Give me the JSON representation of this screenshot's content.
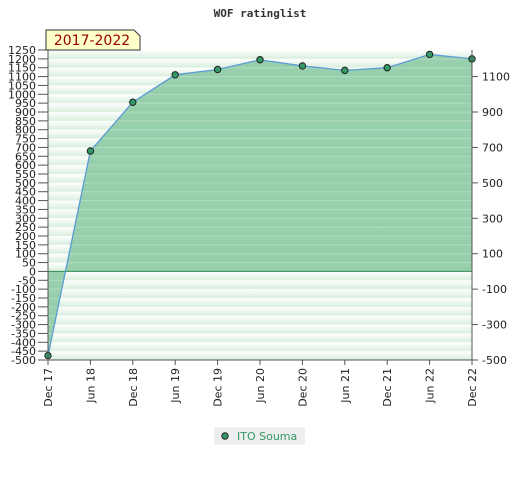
{
  "chart_data": {
    "type": "area",
    "title": "WOF ratinglist",
    "period_label": "2017-2022",
    "categories": [
      "Dec 17",
      "Jun 18",
      "Dec 18",
      "Jun 19",
      "Dec 19",
      "Jun 20",
      "Dec 20",
      "Jun 21",
      "Dec 21",
      "Jun 22",
      "Dec 22"
    ],
    "series": [
      {
        "name": "ITO Souma",
        "values": [
          -475,
          680,
          955,
          1110,
          1140,
          1195,
          1160,
          1135,
          1150,
          1225,
          1200
        ]
      }
    ],
    "ylim": [
      -500,
      1250
    ],
    "y_ticks_left": [
      1250,
      1200,
      1150,
      1100,
      1050,
      1000,
      950,
      900,
      850,
      800,
      750,
      700,
      650,
      600,
      550,
      500,
      450,
      400,
      350,
      300,
      250,
      200,
      150,
      100,
      50,
      0,
      -50,
      -100,
      -150,
      -200,
      -250,
      -300,
      -350,
      -400,
      -450,
      -500
    ],
    "y_ticks_right": [
      1100,
      900,
      700,
      500,
      300,
      100,
      -100,
      -300,
      -500
    ],
    "legend_position": "bottom-center",
    "grid": true,
    "colors": {
      "area": "#88c8a0",
      "line": "#5b9bd5",
      "marker": "#339966",
      "legend_text": "#339966",
      "period_text": "#990000",
      "period_bg": "#ffffcc"
    }
  }
}
